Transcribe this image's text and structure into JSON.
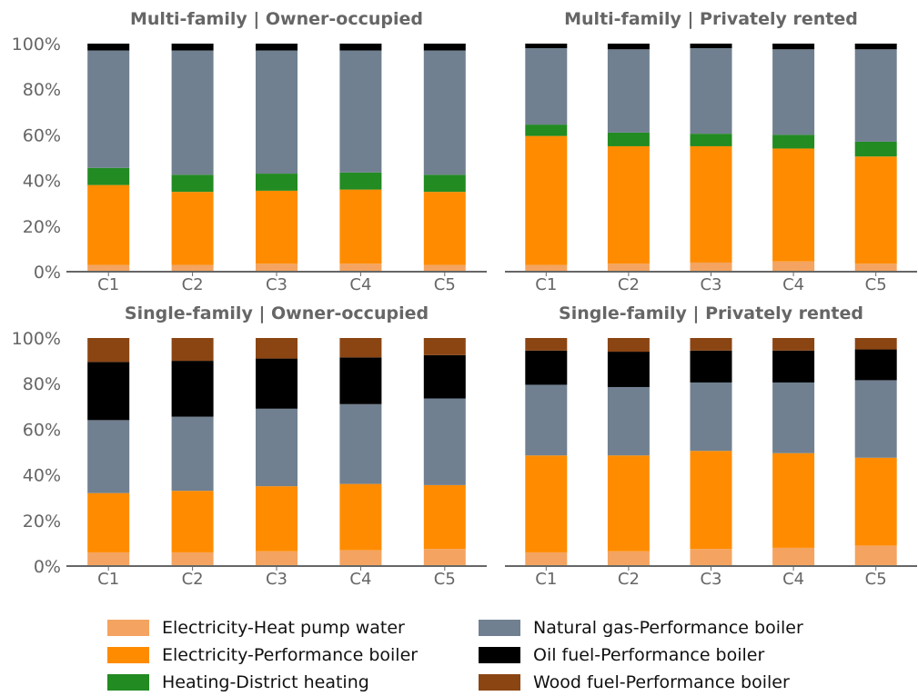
{
  "colors": {
    "Electricity-Heat pump water": "#f4a460",
    "Electricity-Performance boiler": "#ff8c00",
    "Heating-District heating": "#228b22",
    "Natural gas-Performance boiler": "#708090",
    "Oil fuel-Performance boiler": "#000000",
    "Wood fuel-Performance boiler": "#8b4513",
    "axis_text": "#666666"
  },
  "legend": [
    "Electricity-Heat pump water",
    "Electricity-Performance boiler",
    "Heating-District heating",
    "Natural gas-Performance boiler",
    "Oil fuel-Performance boiler",
    "Wood fuel-Performance boiler"
  ],
  "chart_data": [
    {
      "type": "bar",
      "stacked": true,
      "title": "Multi-family | Owner-occupied",
      "categories": [
        "C1",
        "C2",
        "C3",
        "C4",
        "C5"
      ],
      "ylim": [
        0,
        100
      ],
      "yticks": [
        "0%",
        "20%",
        "40%",
        "60%",
        "80%",
        "100%"
      ],
      "series": [
        {
          "name": "Electricity-Heat pump water",
          "values": [
            3,
            3,
            3.5,
            3.5,
            3
          ]
        },
        {
          "name": "Electricity-Performance boiler",
          "values": [
            35,
            32,
            32,
            32.5,
            32
          ]
        },
        {
          "name": "Heating-District heating",
          "values": [
            7.5,
            7.5,
            7.5,
            7.5,
            7.5
          ]
        },
        {
          "name": "Natural gas-Performance boiler",
          "values": [
            51.5,
            54.5,
            54,
            53.5,
            54.5
          ]
        },
        {
          "name": "Oil fuel-Performance boiler",
          "values": [
            3,
            3,
            3,
            3,
            3
          ]
        },
        {
          "name": "Wood fuel-Performance boiler",
          "values": [
            0,
            0,
            0,
            0,
            0
          ]
        }
      ]
    },
    {
      "type": "bar",
      "stacked": true,
      "title": "Multi-family | Privately rented",
      "categories": [
        "C1",
        "C2",
        "C3",
        "C4",
        "C5"
      ],
      "ylim": [
        0,
        100
      ],
      "yticks": [
        "0%",
        "20%",
        "40%",
        "60%",
        "80%",
        "100%"
      ],
      "series": [
        {
          "name": "Electricity-Heat pump water",
          "values": [
            3,
            3.5,
            4,
            4.5,
            3.5
          ]
        },
        {
          "name": "Electricity-Performance boiler",
          "values": [
            56.5,
            51.5,
            51,
            49.5,
            47
          ]
        },
        {
          "name": "Heating-District heating",
          "values": [
            5,
            6,
            5.5,
            6,
            6.5
          ]
        },
        {
          "name": "Natural gas-Performance boiler",
          "values": [
            33.5,
            36.5,
            37.5,
            37.5,
            40.5
          ]
        },
        {
          "name": "Oil fuel-Performance boiler",
          "values": [
            2,
            2.5,
            2,
            2.5,
            2.5
          ]
        },
        {
          "name": "Wood fuel-Performance boiler",
          "values": [
            0,
            0,
            0,
            0,
            0
          ]
        }
      ]
    },
    {
      "type": "bar",
      "stacked": true,
      "title": "Single-family | Owner-occupied",
      "categories": [
        "C1",
        "C2",
        "C3",
        "C4",
        "C5"
      ],
      "ylim": [
        0,
        100
      ],
      "yticks": [
        "0%",
        "20%",
        "40%",
        "60%",
        "80%",
        "100%"
      ],
      "series": [
        {
          "name": "Electricity-Heat pump water",
          "values": [
            6,
            6,
            6.5,
            7,
            7.5
          ]
        },
        {
          "name": "Electricity-Performance boiler",
          "values": [
            26,
            27,
            28.5,
            29,
            28
          ]
        },
        {
          "name": "Heating-District heating",
          "values": [
            0,
            0,
            0,
            0,
            0
          ]
        },
        {
          "name": "Natural gas-Performance boiler",
          "values": [
            32,
            32.5,
            34,
            35,
            38
          ]
        },
        {
          "name": "Oil fuel-Performance boiler",
          "values": [
            25.5,
            24.5,
            22,
            20.5,
            19
          ]
        },
        {
          "name": "Wood fuel-Performance boiler",
          "values": [
            10.5,
            10,
            9,
            8.5,
            7.5
          ]
        }
      ]
    },
    {
      "type": "bar",
      "stacked": true,
      "title": "Single-family | Privately rented",
      "categories": [
        "C1",
        "C2",
        "C3",
        "C4",
        "C5"
      ],
      "ylim": [
        0,
        100
      ],
      "yticks": [
        "0%",
        "20%",
        "40%",
        "60%",
        "80%",
        "100%"
      ],
      "series": [
        {
          "name": "Electricity-Heat pump water",
          "values": [
            6,
            6.5,
            7.5,
            8,
            9
          ]
        },
        {
          "name": "Electricity-Performance boiler",
          "values": [
            42.5,
            42,
            43,
            41.5,
            38.5
          ]
        },
        {
          "name": "Heating-District heating",
          "values": [
            0,
            0,
            0,
            0,
            0
          ]
        },
        {
          "name": "Natural gas-Performance boiler",
          "values": [
            31,
            30,
            30,
            31,
            34
          ]
        },
        {
          "name": "Oil fuel-Performance boiler",
          "values": [
            15,
            15.5,
            14,
            14,
            13.5
          ]
        },
        {
          "name": "Wood fuel-Performance boiler",
          "values": [
            5.5,
            6,
            5.5,
            5.5,
            5
          ]
        }
      ]
    }
  ]
}
